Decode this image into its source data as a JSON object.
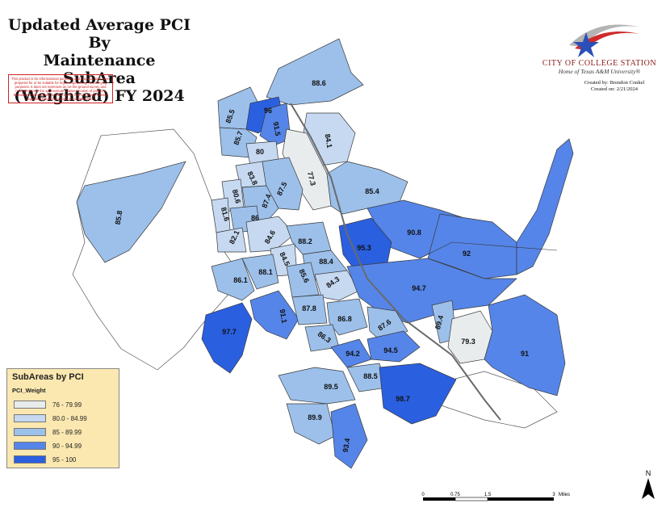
{
  "title_lines": [
    "Updated Average PCI By",
    "Maintenance SubArea",
    "(Weighted) FY 2024"
  ],
  "disclaimer": "This product is for informational purposes and may not have been prepared for or be suitable for legal, engineering, or surveying purposes. It does not represent an on-the-ground survey and represents only the approximate relative location of property boundaries. No warranty is made by the City of College Station regarding specific accuracy or completeness.",
  "logo": {
    "city": "CITY OF COLLEGE STATION",
    "subtitle": "Home of Texas A&M University®",
    "icon": "star-swoosh-logo-icon"
  },
  "credits": {
    "created_by": "Created by: Brendon Conkel",
    "created_on": "Created on: 2/21/2024"
  },
  "legend": {
    "title": "SubAreas by PCI",
    "field": "PCI_Weight",
    "classes": [
      {
        "label": "76 - 79.99",
        "color": "#e9ecec"
      },
      {
        "label": "80.0 - 84.99",
        "color": "#c6d9f1"
      },
      {
        "label": "85 - 89.99",
        "color": "#9cc0ea"
      },
      {
        "label": "90 - 94.99",
        "color": "#5585e8"
      },
      {
        "label": "95 - 100",
        "color": "#2a5fe0"
      }
    ]
  },
  "subareas": [
    {
      "label": "88.6",
      "class": 2
    },
    {
      "label": "85.5",
      "class": 2
    },
    {
      "label": "96",
      "class": 4
    },
    {
      "label": "91.5",
      "class": 3
    },
    {
      "label": "85.7",
      "class": 2
    },
    {
      "label": "84.1",
      "class": 1
    },
    {
      "label": "80",
      "class": 1
    },
    {
      "label": "77.3",
      "class": 0
    },
    {
      "label": "83.8",
      "class": 1
    },
    {
      "label": "87.5",
      "class": 2
    },
    {
      "label": "85.4",
      "class": 2
    },
    {
      "label": "80.6",
      "class": 1
    },
    {
      "label": "87.4",
      "class": 2
    },
    {
      "label": "85.8",
      "class": 2
    },
    {
      "label": "81.6",
      "class": 1
    },
    {
      "label": "86",
      "class": 2
    },
    {
      "label": "90.8",
      "class": 3
    },
    {
      "label": "82.1",
      "class": 1
    },
    {
      "label": "84.6",
      "class": 1
    },
    {
      "label": "95.3",
      "class": 4
    },
    {
      "label": "88.2",
      "class": 2
    },
    {
      "label": "92",
      "class": 3
    },
    {
      "label": "84.5",
      "class": 1
    },
    {
      "label": "88.4",
      "class": 2
    },
    {
      "label": "86.1",
      "class": 2
    },
    {
      "label": "88.1",
      "class": 2
    },
    {
      "label": "85.6",
      "class": 2
    },
    {
      "label": "84.3",
      "class": 1
    },
    {
      "label": "94.7",
      "class": 3
    },
    {
      "label": "91.1",
      "class": 3
    },
    {
      "label": "87.8",
      "class": 2
    },
    {
      "label": "86.8",
      "class": 2
    },
    {
      "label": "87.6",
      "class": 2
    },
    {
      "label": "89.4",
      "class": 2
    },
    {
      "label": "97.7",
      "class": 4
    },
    {
      "label": "86.3",
      "class": 2
    },
    {
      "label": "79.3",
      "class": 0
    },
    {
      "label": "94.2",
      "class": 3
    },
    {
      "label": "94.5",
      "class": 3
    },
    {
      "label": "91",
      "class": 3
    },
    {
      "label": "88.5",
      "class": 2
    },
    {
      "label": "89.5",
      "class": 2
    },
    {
      "label": "98.7",
      "class": 4
    },
    {
      "label": "89.9",
      "class": 2
    },
    {
      "label": "93.4",
      "class": 3
    }
  ],
  "scale": {
    "ticks": [
      "0",
      "0.75",
      "1.5",
      "3"
    ],
    "unit": "Miles"
  },
  "north_label": "N"
}
